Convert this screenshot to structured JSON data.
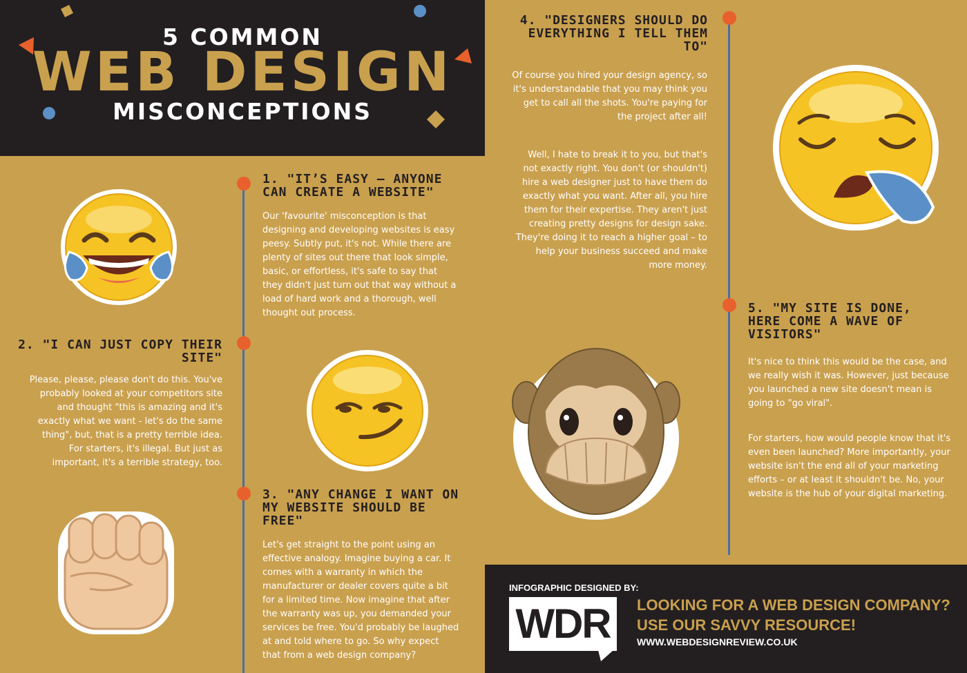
{
  "title": {
    "line1": "5 COMMON",
    "line2": "WEB DESIGN",
    "line3": "MISCONCEPTIONS"
  },
  "sections": [
    {
      "heading": "1. \"It’s easy – anyone can create a website\"",
      "body": "Our 'favourite' misconception is that designing and developing websites is easy peesy. Subtly put, it's not. While there are plenty of sites out there that look simple, basic, or effortless, it's safe to say that they didn't just turn out that way without a load of hard work and a thorough, well thought out process."
    },
    {
      "heading": "2. \"I can just copy their site\"",
      "body": "Please, please, please don't do this. You've probably looked at your competitors site and thought \"this is amazing and it's exactly what we want - let's do the same thing\", but, that is a pretty terrible idea. For starters, it's illegal. But just as important, it's a terrible strategy, too."
    },
    {
      "heading": "3. \"Any change I want on my website should be free\"",
      "body": "Let's get straight to the point using an effective analogy.  Imagine buying a car. It comes with a warranty in which the manufacturer or dealer covers quite a bit for a limited time. Now imagine that after the warranty was up, you demanded your services be free. You'd probably be laughed at and told where to go. So why expect that from a web design company?"
    },
    {
      "heading": "4. \"Designers should do everything I tell them to\"",
      "body_p1": "Of course you hired your design agency, so it's understandable that you may think you get to call all the shots. You're paying for the project after all!",
      "body_p2": "Well, I hate to break it to you, but that's not exactly right. You don't (or shouldn't) hire a web designer just to have them do exactly what you want. After all, you hire them for their expertise. They aren't just creating pretty designs for design sake. They're doing it to reach a higher goal – to help your business succeed and make more money."
    },
    {
      "heading": "5. \"My site is done, here come a wave of visitors\"",
      "body_p1": "It's nice to think this would be the case, and we really wish it was. However, just because you launched a new site doesn't mean is going to \"go viral\".",
      "body_p2": "For starters, how would people know that it's even been launched? More importantly, your website isn't the end all of your marketing efforts – or at least it shouldn't be. No, your website is the hub of your digital marketing."
    }
  ],
  "footer": {
    "label": "INFOGRAPHIC DESIGNED BY:",
    "logo": "WDR",
    "cta_line1": "LOOKING FOR A WEB DESIGN COMPANY?",
    "cta_line2": "USE OUR SAVVY RESOURCE!",
    "url": "WWW.WEBDESIGNREVIEW.CO.UK"
  },
  "colors": {
    "background": "#c9a04e",
    "dark": "#231f20",
    "accent_orange": "#e8602c",
    "accent_blue": "#4a6fa5",
    "emoji_yellow": "#f6c324"
  },
  "icons": [
    "crying-laughing-emoji-icon",
    "smirk-emoji-icon",
    "raised-fist-emoji-icon",
    "sleepy-emoji-icon",
    "speak-no-evil-monkey-icon"
  ]
}
